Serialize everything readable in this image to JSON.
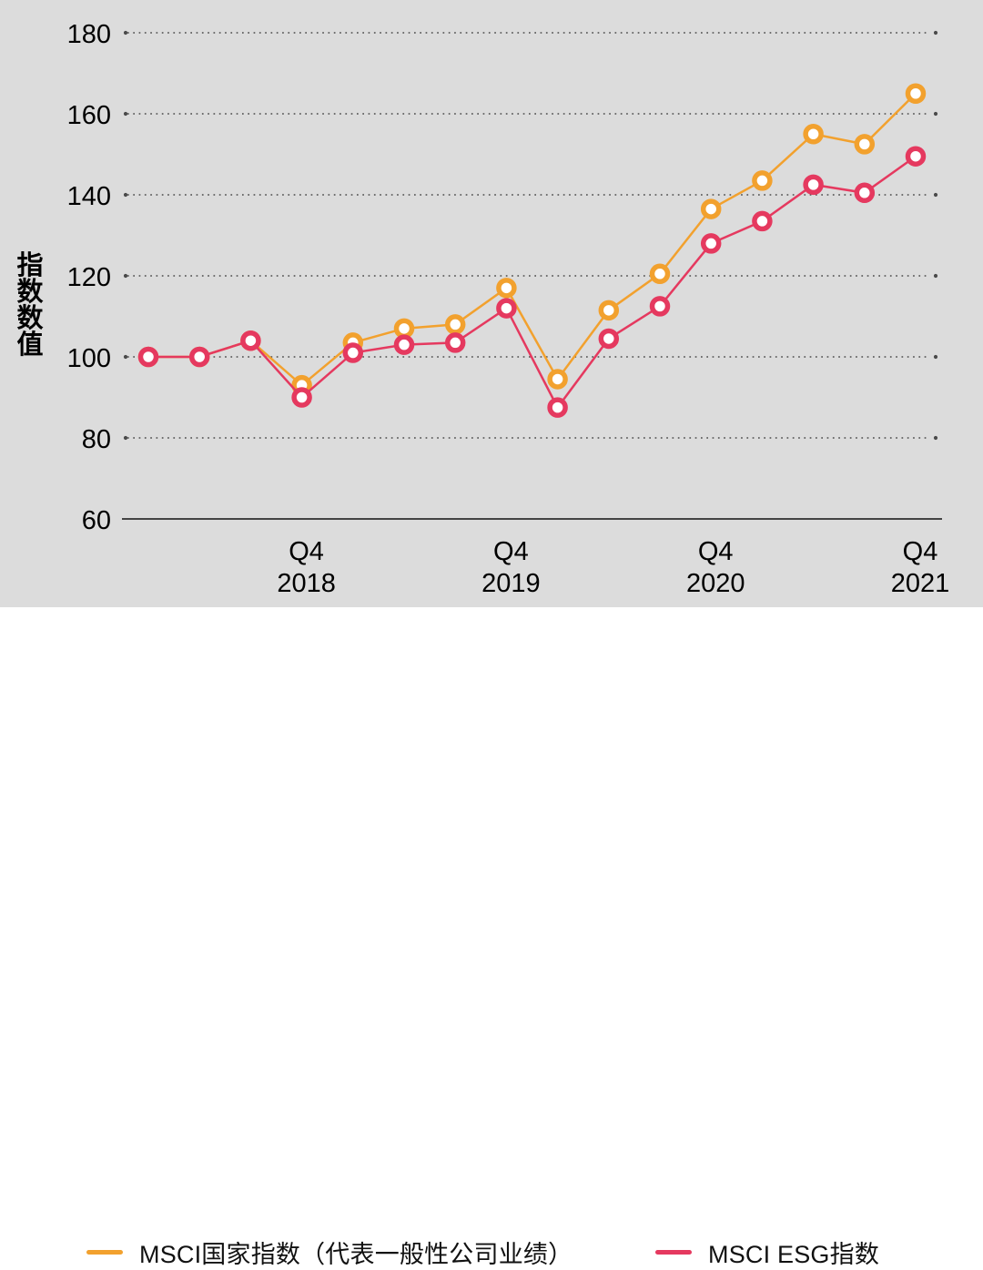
{
  "chart_data": {
    "type": "line",
    "title": "",
    "ylabel": "指数数值",
    "xlabel": "",
    "ylim": [
      60,
      185
    ],
    "yticks": [
      60,
      80,
      100,
      120,
      140,
      160,
      180
    ],
    "grid": "dotted horizontal gridlines, solid baseline at 60",
    "legend_position": "bottom",
    "x_description": "16 quarterly points, Q1 2018 to Q4 2021; only Q4 of each year is labeled",
    "x_ticks": [
      {
        "index": 3,
        "line1": "Q4",
        "line2": "2018"
      },
      {
        "index": 7,
        "line1": "Q4",
        "line2": "2019"
      },
      {
        "index": 11,
        "line1": "Q4",
        "line2": "2020"
      },
      {
        "index": 15,
        "line1": "Q4",
        "line2": "2021"
      }
    ],
    "series": [
      {
        "name": "MSCI国家指数（代表一般性公司业绩）",
        "color": "#F2A12E",
        "values": [
          100,
          100,
          104,
          93,
          103.5,
          107,
          108,
          117,
          94.5,
          111.5,
          120.5,
          136.5,
          143.5,
          155,
          152.5,
          165
        ]
      },
      {
        "name": "MSCI ESG指数",
        "color": "#E5395F",
        "values": [
          100,
          100,
          104,
          90,
          101,
          103,
          103.5,
          112,
          87.5,
          104.5,
          112.5,
          128,
          133.5,
          142.5,
          140.5,
          149.5
        ]
      }
    ]
  },
  "legend": {
    "items": [
      {
        "label": "MSCI国家指数（代表一般性公司业绩）",
        "color": "#F2A12E"
      },
      {
        "label": "MSCI ESG指数",
        "color": "#E5395F"
      }
    ]
  },
  "colors": {
    "panel_bg": "#dcdcdc",
    "page_bg": "#ffffff",
    "grid": "#4a4a4a",
    "axis": "#444444",
    "text": "#000000",
    "marker_fill": "#ffffff"
  }
}
